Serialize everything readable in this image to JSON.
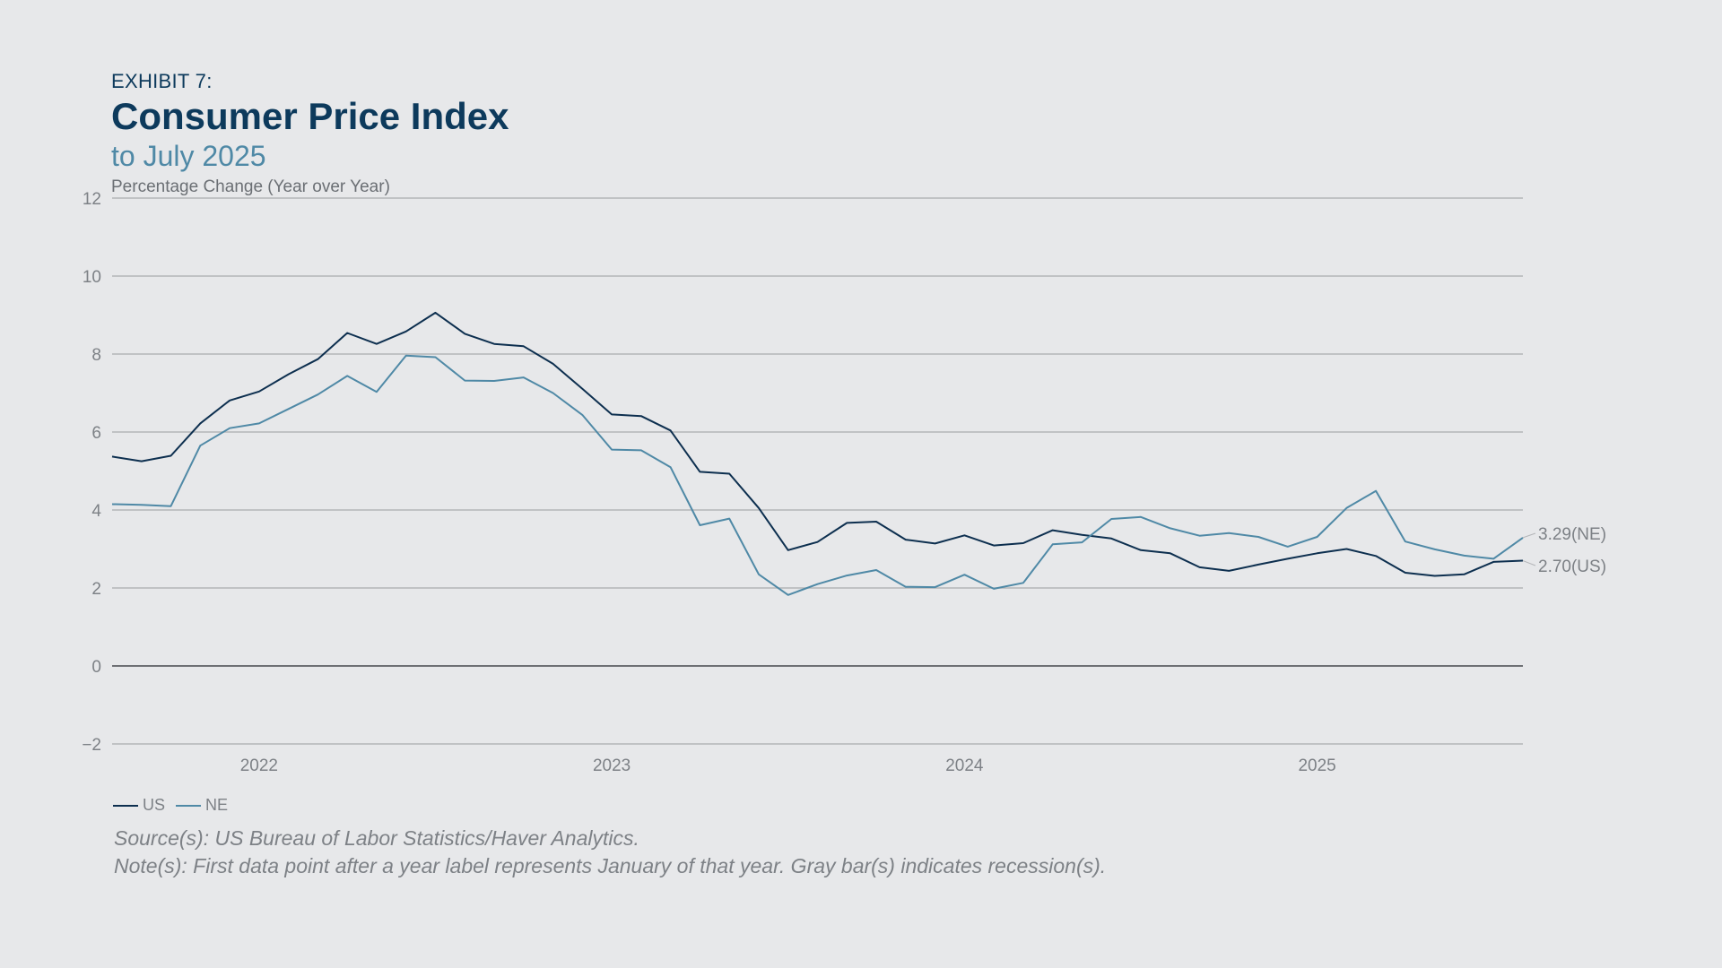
{
  "header": {
    "exhibit": "EXHIBIT 7:",
    "title": "Consumer Price Index",
    "subtitle": "to July 2025",
    "ylabel": "Percentage Change (Year over Year)"
  },
  "colors": {
    "US": "#0d2f4f",
    "NE": "#4f89a6",
    "grid": "#b3b5b8",
    "zero": "#6e7074",
    "tick": "#7d8186"
  },
  "chart_data": {
    "type": "line",
    "title": "Consumer Price Index",
    "subtitle": "to July 2025",
    "ylabel": "Percentage Change (Year over Year)",
    "ylim": [
      -2,
      12
    ],
    "yticks": [
      -2,
      0,
      2,
      4,
      6,
      8,
      10,
      12
    ],
    "ytick_labels": [
      "−2",
      "0",
      "2",
      "4",
      "6",
      "8",
      "10",
      "12"
    ],
    "grid": true,
    "x_range": [
      "2021-07",
      "2025-07"
    ],
    "xtick_labels": [
      "2022",
      "2023",
      "2024",
      "2025"
    ],
    "xtick_dates": [
      "2021-12",
      "2022-12",
      "2023-12",
      "2024-12"
    ],
    "x": [
      "2021-07",
      "2021-08",
      "2021-09",
      "2021-10",
      "2021-11",
      "2021-12",
      "2022-01",
      "2022-02",
      "2022-03",
      "2022-04",
      "2022-05",
      "2022-06",
      "2022-07",
      "2022-08",
      "2022-09",
      "2022-10",
      "2022-11",
      "2022-12",
      "2023-01",
      "2023-02",
      "2023-03",
      "2023-04",
      "2023-05",
      "2023-06",
      "2023-07",
      "2023-08",
      "2023-09",
      "2023-10",
      "2023-11",
      "2023-12",
      "2024-01",
      "2024-02",
      "2024-03",
      "2024-04",
      "2024-05",
      "2024-06",
      "2024-07",
      "2024-08",
      "2024-09",
      "2024-10",
      "2024-11",
      "2024-12",
      "2025-01",
      "2025-02",
      "2025-03",
      "2025-04",
      "2025-05",
      "2025-06",
      "2025-07"
    ],
    "series": [
      {
        "name": "US",
        "values": [
          5.37,
          5.25,
          5.39,
          6.22,
          6.81,
          7.04,
          7.48,
          7.87,
          8.54,
          8.26,
          8.58,
          9.06,
          8.52,
          8.26,
          8.2,
          7.75,
          7.11,
          6.45,
          6.41,
          6.04,
          4.98,
          4.93,
          4.05,
          2.97,
          3.18,
          3.67,
          3.7,
          3.24,
          3.14,
          3.35,
          3.09,
          3.15,
          3.48,
          3.36,
          3.27,
          2.97,
          2.89,
          2.53,
          2.44,
          2.6,
          2.75,
          2.89,
          3.0,
          2.82,
          2.39,
          2.31,
          2.35,
          2.67,
          2.7
        ]
      },
      {
        "name": "NE",
        "values": [
          4.15,
          4.13,
          4.1,
          5.65,
          6.1,
          6.22,
          6.59,
          6.96,
          7.44,
          7.03,
          7.96,
          7.92,
          7.32,
          7.31,
          7.4,
          7.0,
          6.44,
          5.55,
          5.53,
          5.1,
          3.61,
          3.78,
          2.35,
          1.82,
          2.1,
          2.32,
          2.46,
          2.03,
          2.02,
          2.34,
          1.98,
          2.13,
          3.12,
          3.17,
          3.77,
          3.82,
          3.53,
          3.34,
          3.41,
          3.31,
          3.06,
          3.31,
          4.05,
          4.49,
          3.19,
          2.99,
          2.83,
          2.75,
          3.29
        ]
      }
    ],
    "annotations": [
      {
        "series": "NE",
        "label": "3.29(NE)"
      },
      {
        "series": "US",
        "label": "2.70(US)"
      }
    ],
    "legend_position": "bottom-left"
  },
  "legend": {
    "us": "US",
    "ne": "NE"
  },
  "footer": {
    "source": "Source(s): US Bureau of Labor Statistics/Haver Analytics.",
    "note": "Note(s): First data point after a year label represents January of that year. Gray bar(s) indicates recession(s)."
  }
}
